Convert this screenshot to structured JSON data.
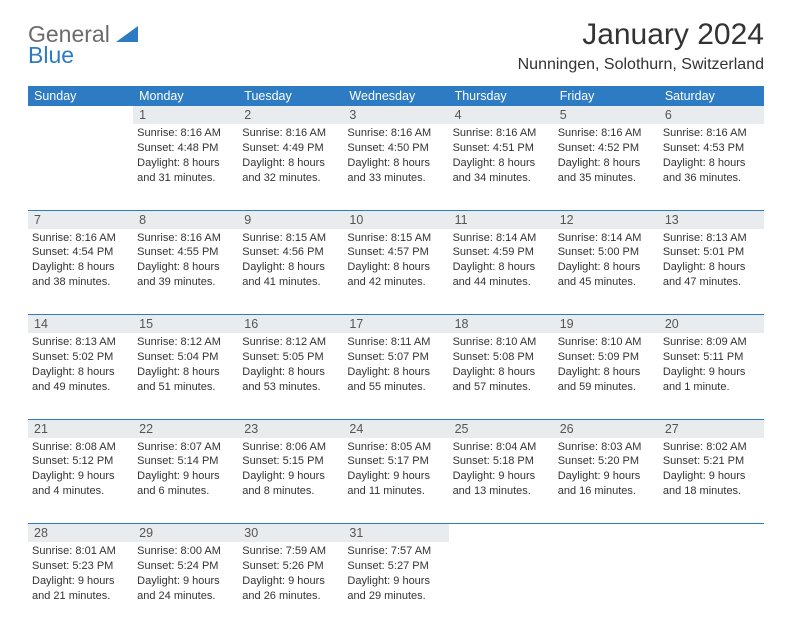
{
  "logo": {
    "line1": "General",
    "line2": "Blue"
  },
  "title": "January 2024",
  "location": "Nunningen, Solothurn, Switzerland",
  "header_bg": "#2d7bc3",
  "header_fg": "#ffffff",
  "daynum_bg": "#e9ecef",
  "rule_color": "#2d7bc3",
  "weekdays": [
    "Sunday",
    "Monday",
    "Tuesday",
    "Wednesday",
    "Thursday",
    "Friday",
    "Saturday"
  ],
  "weeks": [
    [
      {
        "n": "",
        "lines": []
      },
      {
        "n": "1",
        "lines": [
          "Sunrise: 8:16 AM",
          "Sunset: 4:48 PM",
          "Daylight: 8 hours",
          "and 31 minutes."
        ]
      },
      {
        "n": "2",
        "lines": [
          "Sunrise: 8:16 AM",
          "Sunset: 4:49 PM",
          "Daylight: 8 hours",
          "and 32 minutes."
        ]
      },
      {
        "n": "3",
        "lines": [
          "Sunrise: 8:16 AM",
          "Sunset: 4:50 PM",
          "Daylight: 8 hours",
          "and 33 minutes."
        ]
      },
      {
        "n": "4",
        "lines": [
          "Sunrise: 8:16 AM",
          "Sunset: 4:51 PM",
          "Daylight: 8 hours",
          "and 34 minutes."
        ]
      },
      {
        "n": "5",
        "lines": [
          "Sunrise: 8:16 AM",
          "Sunset: 4:52 PM",
          "Daylight: 8 hours",
          "and 35 minutes."
        ]
      },
      {
        "n": "6",
        "lines": [
          "Sunrise: 8:16 AM",
          "Sunset: 4:53 PM",
          "Daylight: 8 hours",
          "and 36 minutes."
        ]
      }
    ],
    [
      {
        "n": "7",
        "lines": [
          "Sunrise: 8:16 AM",
          "Sunset: 4:54 PM",
          "Daylight: 8 hours",
          "and 38 minutes."
        ]
      },
      {
        "n": "8",
        "lines": [
          "Sunrise: 8:16 AM",
          "Sunset: 4:55 PM",
          "Daylight: 8 hours",
          "and 39 minutes."
        ]
      },
      {
        "n": "9",
        "lines": [
          "Sunrise: 8:15 AM",
          "Sunset: 4:56 PM",
          "Daylight: 8 hours",
          "and 41 minutes."
        ]
      },
      {
        "n": "10",
        "lines": [
          "Sunrise: 8:15 AM",
          "Sunset: 4:57 PM",
          "Daylight: 8 hours",
          "and 42 minutes."
        ]
      },
      {
        "n": "11",
        "lines": [
          "Sunrise: 8:14 AM",
          "Sunset: 4:59 PM",
          "Daylight: 8 hours",
          "and 44 minutes."
        ]
      },
      {
        "n": "12",
        "lines": [
          "Sunrise: 8:14 AM",
          "Sunset: 5:00 PM",
          "Daylight: 8 hours",
          "and 45 minutes."
        ]
      },
      {
        "n": "13",
        "lines": [
          "Sunrise: 8:13 AM",
          "Sunset: 5:01 PM",
          "Daylight: 8 hours",
          "and 47 minutes."
        ]
      }
    ],
    [
      {
        "n": "14",
        "lines": [
          "Sunrise: 8:13 AM",
          "Sunset: 5:02 PM",
          "Daylight: 8 hours",
          "and 49 minutes."
        ]
      },
      {
        "n": "15",
        "lines": [
          "Sunrise: 8:12 AM",
          "Sunset: 5:04 PM",
          "Daylight: 8 hours",
          "and 51 minutes."
        ]
      },
      {
        "n": "16",
        "lines": [
          "Sunrise: 8:12 AM",
          "Sunset: 5:05 PM",
          "Daylight: 8 hours",
          "and 53 minutes."
        ]
      },
      {
        "n": "17",
        "lines": [
          "Sunrise: 8:11 AM",
          "Sunset: 5:07 PM",
          "Daylight: 8 hours",
          "and 55 minutes."
        ]
      },
      {
        "n": "18",
        "lines": [
          "Sunrise: 8:10 AM",
          "Sunset: 5:08 PM",
          "Daylight: 8 hours",
          "and 57 minutes."
        ]
      },
      {
        "n": "19",
        "lines": [
          "Sunrise: 8:10 AM",
          "Sunset: 5:09 PM",
          "Daylight: 8 hours",
          "and 59 minutes."
        ]
      },
      {
        "n": "20",
        "lines": [
          "Sunrise: 8:09 AM",
          "Sunset: 5:11 PM",
          "Daylight: 9 hours",
          "and 1 minute."
        ]
      }
    ],
    [
      {
        "n": "21",
        "lines": [
          "Sunrise: 8:08 AM",
          "Sunset: 5:12 PM",
          "Daylight: 9 hours",
          "and 4 minutes."
        ]
      },
      {
        "n": "22",
        "lines": [
          "Sunrise: 8:07 AM",
          "Sunset: 5:14 PM",
          "Daylight: 9 hours",
          "and 6 minutes."
        ]
      },
      {
        "n": "23",
        "lines": [
          "Sunrise: 8:06 AM",
          "Sunset: 5:15 PM",
          "Daylight: 9 hours",
          "and 8 minutes."
        ]
      },
      {
        "n": "24",
        "lines": [
          "Sunrise: 8:05 AM",
          "Sunset: 5:17 PM",
          "Daylight: 9 hours",
          "and 11 minutes."
        ]
      },
      {
        "n": "25",
        "lines": [
          "Sunrise: 8:04 AM",
          "Sunset: 5:18 PM",
          "Daylight: 9 hours",
          "and 13 minutes."
        ]
      },
      {
        "n": "26",
        "lines": [
          "Sunrise: 8:03 AM",
          "Sunset: 5:20 PM",
          "Daylight: 9 hours",
          "and 16 minutes."
        ]
      },
      {
        "n": "27",
        "lines": [
          "Sunrise: 8:02 AM",
          "Sunset: 5:21 PM",
          "Daylight: 9 hours",
          "and 18 minutes."
        ]
      }
    ],
    [
      {
        "n": "28",
        "lines": [
          "Sunrise: 8:01 AM",
          "Sunset: 5:23 PM",
          "Daylight: 9 hours",
          "and 21 minutes."
        ]
      },
      {
        "n": "29",
        "lines": [
          "Sunrise: 8:00 AM",
          "Sunset: 5:24 PM",
          "Daylight: 9 hours",
          "and 24 minutes."
        ]
      },
      {
        "n": "30",
        "lines": [
          "Sunrise: 7:59 AM",
          "Sunset: 5:26 PM",
          "Daylight: 9 hours",
          "and 26 minutes."
        ]
      },
      {
        "n": "31",
        "lines": [
          "Sunrise: 7:57 AM",
          "Sunset: 5:27 PM",
          "Daylight: 9 hours",
          "and 29 minutes."
        ]
      },
      {
        "n": "",
        "lines": []
      },
      {
        "n": "",
        "lines": []
      },
      {
        "n": "",
        "lines": []
      }
    ]
  ]
}
